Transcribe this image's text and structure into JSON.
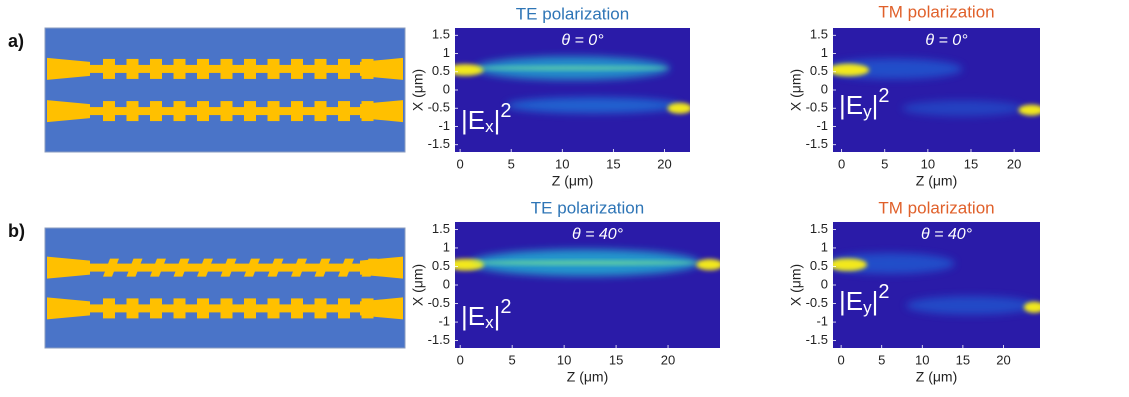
{
  "rows": [
    {
      "label": "a)",
      "panels": [
        {
          "title": "TE polarization",
          "annotation": "θ = 0°",
          "field": {
            "open": "|E",
            "sub": "x",
            "close": "|",
            "power": "2"
          },
          "xlabel": "Z (μm)",
          "ylabel": "X (μm)",
          "xlim": [
            -0.5,
            22.5
          ],
          "ylim": [
            -1.7,
            1.7
          ],
          "xticks": [
            0,
            5,
            10,
            15,
            20
          ],
          "yticks": [
            1.5,
            1,
            0.5,
            0,
            -0.5,
            -1,
            -1.5
          ]
        },
        {
          "title": "TM polarization",
          "annotation": "θ = 0°",
          "field": {
            "open": "|E",
            "sub": "y",
            "close": "|",
            "power": "2"
          },
          "xlabel": "Z (μm)",
          "ylabel": "X (μm)",
          "xlim": [
            -1,
            23
          ],
          "ylim": [
            -1.7,
            1.7
          ],
          "xticks": [
            0,
            5,
            10,
            15,
            20
          ],
          "yticks": [
            1.5,
            1,
            0.5,
            0,
            -0.5,
            -1,
            -1.5
          ]
        }
      ]
    },
    {
      "label": "b)",
      "panels": [
        {
          "title": "TE polarization",
          "annotation": "θ = 40°",
          "field": {
            "open": "|E",
            "sub": "x",
            "close": "|",
            "power": "2"
          },
          "xlabel": "Z (μm)",
          "ylabel": "X (μm)",
          "xlim": [
            -0.5,
            25
          ],
          "ylim": [
            -1.7,
            1.7
          ],
          "xticks": [
            0,
            5,
            10,
            15,
            20
          ],
          "yticks": [
            1.5,
            1,
            0.5,
            0,
            -0.5,
            -1,
            -1.5
          ]
        },
        {
          "title": "TM polarization",
          "annotation": "θ = 40°",
          "field": {
            "open": "|E",
            "sub": "y",
            "close": "|",
            "power": "2"
          },
          "xlabel": "Z (μm)",
          "ylabel": "X (μm)",
          "xlim": [
            -1,
            24.5
          ],
          "ylim": [
            -1.7,
            1.7
          ],
          "xticks": [
            0,
            5,
            10,
            15,
            20
          ],
          "yticks": [
            1.5,
            1,
            0.5,
            0,
            -0.5,
            -1,
            -1.5
          ]
        }
      ]
    }
  ]
}
